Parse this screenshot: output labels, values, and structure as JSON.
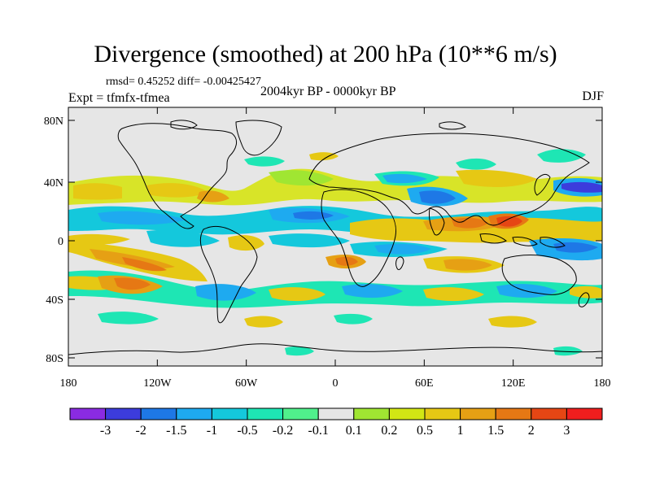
{
  "header": {
    "title": "Divergence (smoothed) at 200 hPa (10**6 m/s)",
    "stats": "rmsd= 0.45252 diff= -0.00425427",
    "experiment": "Expt = tfmfx-tfmea",
    "period": "2004kyr BP - 0000kyr BP",
    "season": "DJF"
  },
  "map": {
    "lat_ticks": [
      "80N",
      "40N",
      "0",
      "40S",
      "80S"
    ],
    "lon_ticks": [
      "180",
      "120W",
      "60W",
      "0",
      "60E",
      "120E",
      "180"
    ],
    "ocean_color": "#e6e6e6"
  },
  "colorbar": {
    "colors": [
      "#8a2be2",
      "#3c3cdc",
      "#1e78e6",
      "#1eaaf0",
      "#14c8dc",
      "#1ee6b4",
      "#50f08c",
      "#e6e6e6",
      "#a0e632",
      "#d2e614",
      "#e6c814",
      "#e6a014",
      "#e67814",
      "#e64614",
      "#f01e1e"
    ],
    "labels": [
      "-3",
      "-2",
      "-1.5",
      "-1",
      "-0.5",
      "-0.2",
      "-0.1",
      "0.1",
      "0.2",
      "0.5",
      "1",
      "1.5",
      "2",
      "3"
    ]
  }
}
